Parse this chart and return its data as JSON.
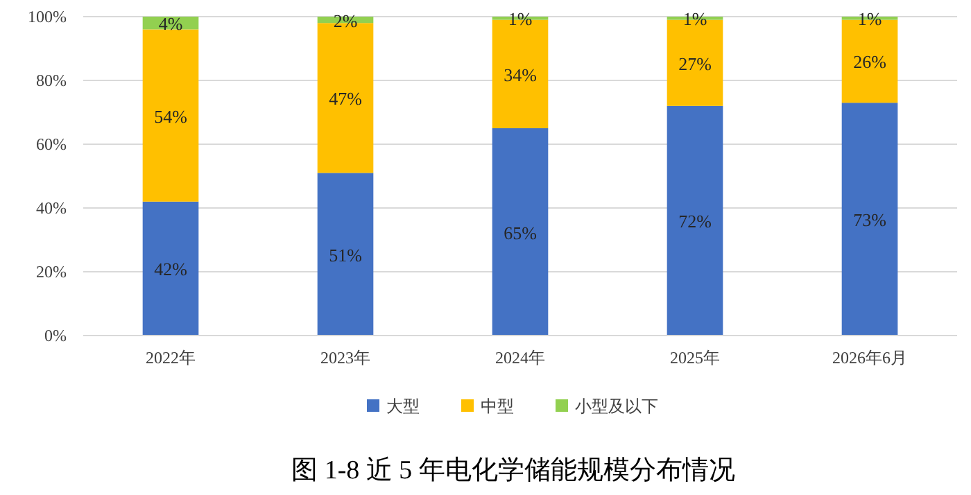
{
  "chart_data": {
    "type": "bar",
    "stacked": true,
    "title": "图 1-8 近 5 年电化学储能规模分布情况",
    "categories": [
      "2022年",
      "2023年",
      "2024年",
      "2025年",
      "2026年6月"
    ],
    "series": [
      {
        "name": "大型",
        "color": "#4472c4",
        "values": [
          42,
          51,
          65,
          72,
          73
        ],
        "value_labels": [
          "42%",
          "51%",
          "65%",
          "72%",
          "73%"
        ]
      },
      {
        "name": "中型",
        "color": "#ffc000",
        "values": [
          54,
          47,
          34,
          27,
          26
        ],
        "value_labels": [
          "54%",
          "47%",
          "34%",
          "27%",
          "26%"
        ]
      },
      {
        "name": "小型及以下",
        "color": "#92d050",
        "values": [
          4,
          2,
          1,
          1,
          1
        ],
        "value_labels": [
          "4%",
          "2%",
          "1%",
          "1%",
          "1%"
        ]
      }
    ],
    "ylim": [
      0,
      100
    ],
    "yticks": [
      {
        "value": 0,
        "label": "0%"
      },
      {
        "value": 20,
        "label": "20%"
      },
      {
        "value": 40,
        "label": "40%"
      },
      {
        "value": 60,
        "label": "60%"
      },
      {
        "value": 80,
        "label": "80%"
      },
      {
        "value": 100,
        "label": "100%"
      }
    ],
    "grid": "y",
    "legend": "bottom"
  }
}
